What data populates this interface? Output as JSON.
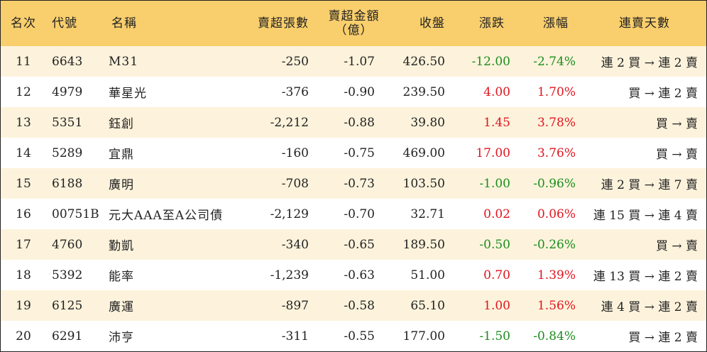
{
  "header": {
    "rank": "名次",
    "code": "代號",
    "name": "名稱",
    "net_shares": "賣超張數",
    "net_amount_line1": "賣超金額",
    "net_amount_line2": "（億）",
    "close": "收盤",
    "change": "漲跌",
    "change_pct": "漲幅",
    "streak": "連賣天數"
  },
  "colors": {
    "header_bg": "#f9cf6d",
    "stripe_bg": "#fdf3dc",
    "up": "#e0141e",
    "down": "#1c8c1c"
  },
  "rows": [
    {
      "rank": "11",
      "code": "6643",
      "name": "M31",
      "net_shares": "-250",
      "net_amount": "-1.07",
      "close": "426.50",
      "change": "-12.00",
      "change_pct": "-2.74%",
      "dir": "down",
      "streak": "連 2 買 → 連 2 賣"
    },
    {
      "rank": "12",
      "code": "4979",
      "name": "華星光",
      "net_shares": "-376",
      "net_amount": "-0.90",
      "close": "239.50",
      "change": "4.00",
      "change_pct": "1.70%",
      "dir": "up",
      "streak": "買 → 連 2 賣"
    },
    {
      "rank": "13",
      "code": "5351",
      "name": "鈺創",
      "net_shares": "-2,212",
      "net_amount": "-0.88",
      "close": "39.80",
      "change": "1.45",
      "change_pct": "3.78%",
      "dir": "up",
      "streak": "買 → 賣"
    },
    {
      "rank": "14",
      "code": "5289",
      "name": "宜鼎",
      "net_shares": "-160",
      "net_amount": "-0.75",
      "close": "469.00",
      "change": "17.00",
      "change_pct": "3.76%",
      "dir": "up",
      "streak": "買 → 賣"
    },
    {
      "rank": "15",
      "code": "6188",
      "name": "廣明",
      "net_shares": "-708",
      "net_amount": "-0.73",
      "close": "103.50",
      "change": "-1.00",
      "change_pct": "-0.96%",
      "dir": "down",
      "streak": "連 2 買 → 連 7 賣"
    },
    {
      "rank": "16",
      "code": "00751B",
      "name": "元大AAA至A公司債",
      "net_shares": "-2,129",
      "net_amount": "-0.70",
      "close": "32.71",
      "change": "0.02",
      "change_pct": "0.06%",
      "dir": "up",
      "streak": "連 15 買 → 連 4 賣"
    },
    {
      "rank": "17",
      "code": "4760",
      "name": "勤凱",
      "net_shares": "-340",
      "net_amount": "-0.65",
      "close": "189.50",
      "change": "-0.50",
      "change_pct": "-0.26%",
      "dir": "down",
      "streak": "買 → 賣"
    },
    {
      "rank": "18",
      "code": "5392",
      "name": "能率",
      "net_shares": "-1,239",
      "net_amount": "-0.63",
      "close": "51.00",
      "change": "0.70",
      "change_pct": "1.39%",
      "dir": "up",
      "streak": "連 13 買 → 連 2 賣"
    },
    {
      "rank": "19",
      "code": "6125",
      "name": "廣運",
      "net_shares": "-897",
      "net_amount": "-0.58",
      "close": "65.10",
      "change": "1.00",
      "change_pct": "1.56%",
      "dir": "up",
      "streak": "連 4 買 → 連 2 賣"
    },
    {
      "rank": "20",
      "code": "6291",
      "name": "沛亨",
      "net_shares": "-311",
      "net_amount": "-0.55",
      "close": "177.00",
      "change": "-1.50",
      "change_pct": "-0.84%",
      "dir": "down",
      "streak": "買 → 連 2 賣"
    }
  ]
}
